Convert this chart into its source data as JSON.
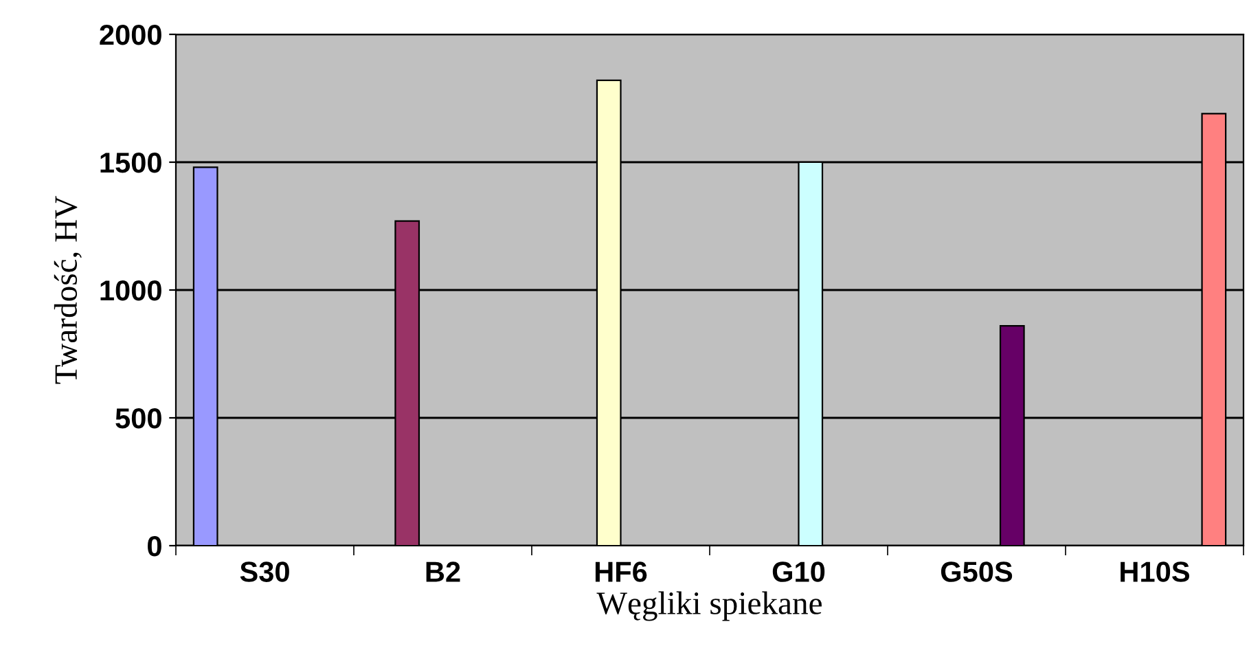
{
  "chart_data": {
    "type": "bar",
    "xlabel": "Węgliki spiekane",
    "ylabel": "Twardość, HV",
    "categories": [
      "S30",
      "B2",
      "HF6",
      "G10",
      "G50S",
      "H10S"
    ],
    "series": [
      {
        "color": "#9999ff",
        "values": [
          1480,
          null,
          null,
          null,
          null,
          null
        ]
      },
      {
        "color": "#993366",
        "values": [
          null,
          1270,
          null,
          null,
          null,
          null
        ]
      },
      {
        "color": "#ffffcc",
        "values": [
          null,
          null,
          1820,
          null,
          null,
          null
        ]
      },
      {
        "color": "#ccffff",
        "values": [
          null,
          null,
          null,
          1500,
          null,
          null
        ]
      },
      {
        "color": "#660066",
        "values": [
          null,
          null,
          null,
          null,
          860,
          null
        ]
      },
      {
        "color": "#ff8080",
        "values": [
          null,
          null,
          null,
          null,
          null,
          1690
        ]
      }
    ],
    "ylim": [
      0,
      2000
    ],
    "yticks": [
      0,
      500,
      1000,
      1500,
      2000
    ],
    "grid": "y",
    "legend": false
  }
}
